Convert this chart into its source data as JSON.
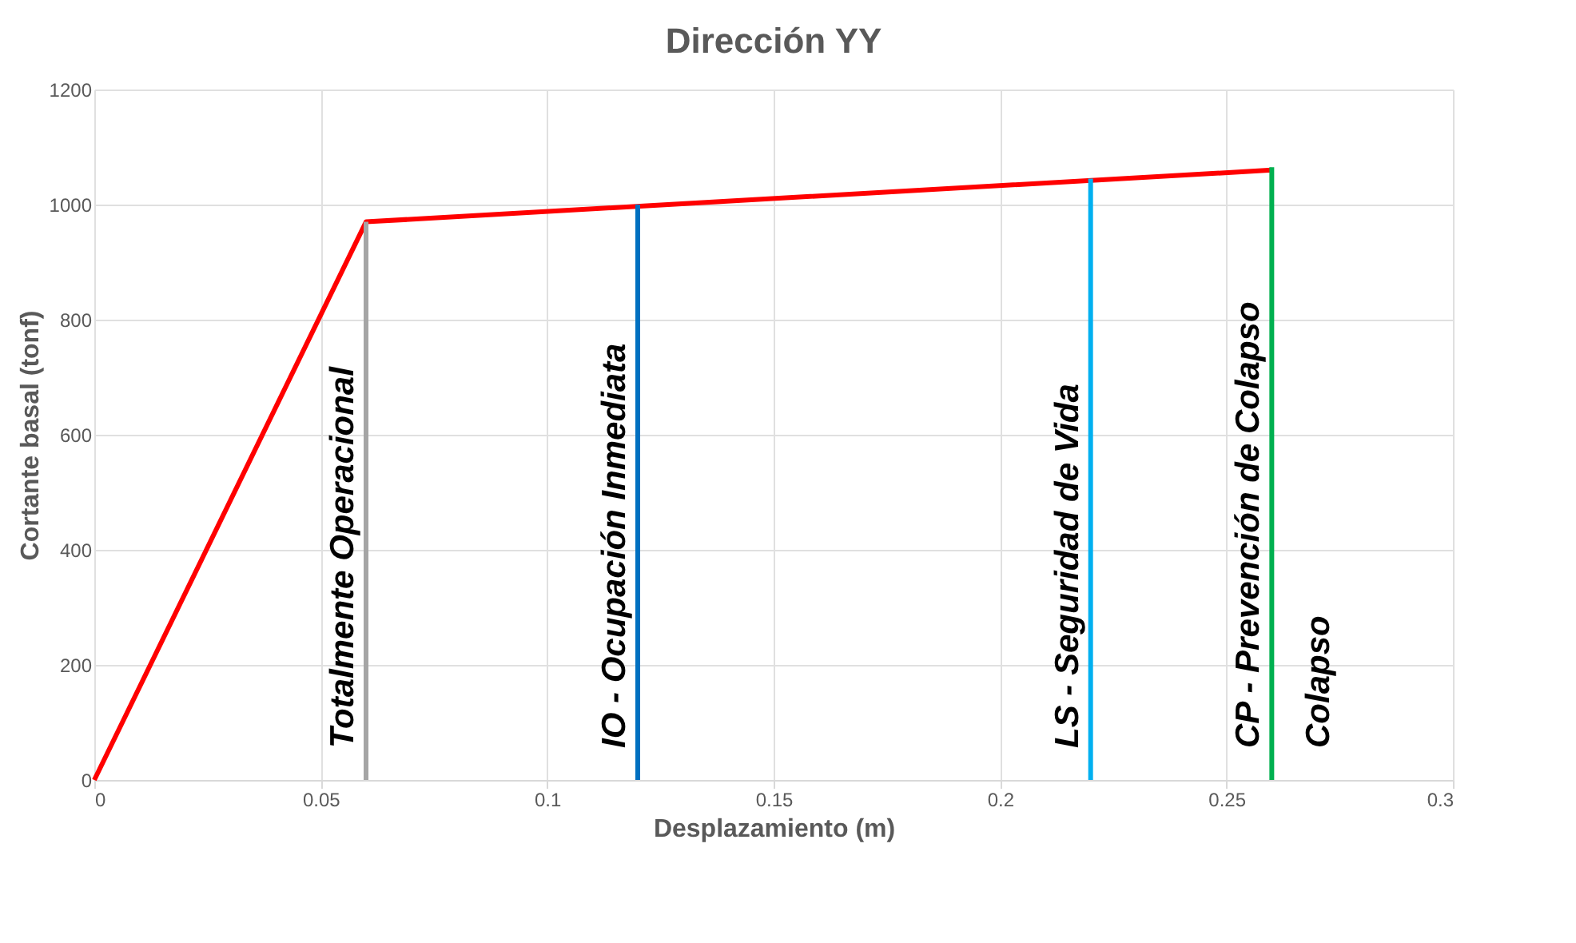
{
  "chart_data": {
    "type": "line",
    "title": "Dirección YY",
    "xlabel": "Desplazamiento (m)",
    "ylabel": "Cortante basal (tonf)",
    "xlim": [
      0,
      0.3
    ],
    "xticks": [
      0,
      0.05,
      0.1,
      0.15,
      0.2,
      0.25,
      0.3
    ],
    "ylim": [
      0,
      1200
    ],
    "yticks": [
      0,
      200,
      400,
      600,
      800,
      1000,
      1200
    ],
    "grid": true,
    "legend": false,
    "marker": "none",
    "line_style": "solid",
    "series": [
      {
        "color": "#ff0000",
        "x": [
          0,
          0.06,
          0.26
        ],
        "values": [
          0,
          970,
          1060
        ]
      },
      {
        "name": "Totalmente Operacional",
        "color": "#a5a5a5",
        "x": [
          0.06,
          0.06
        ],
        "values": [
          0,
          970
        ]
      },
      {
        "name": "IO - Ocupación Inmediata",
        "color": "#0070c0",
        "x": [
          0.12,
          0.12
        ],
        "values": [
          0,
          1000
        ]
      },
      {
        "name": "LS - Seguridad de Vida",
        "color": "#00b0f0",
        "x": [
          0.22,
          0.22
        ],
        "values": [
          0,
          1045
        ]
      },
      {
        "name": "CP - Prevención de Colapso",
        "color": "#00b050",
        "x": [
          0.26,
          0.26
        ],
        "values": [
          0,
          1065
        ]
      }
    ],
    "annotations": [
      "Colapso"
    ]
  }
}
